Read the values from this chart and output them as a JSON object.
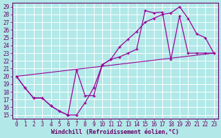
{
  "xlabel": "Windchill (Refroidissement éolien,°C)",
  "bg_color": "#b2e8e8",
  "line_color": "#990099",
  "grid_color": "#ffffff",
  "xlim": [
    -0.5,
    23.5
  ],
  "ylim": [
    14.5,
    29.5
  ],
  "xticks": [
    0,
    1,
    2,
    3,
    4,
    5,
    6,
    7,
    8,
    9,
    10,
    11,
    12,
    13,
    14,
    15,
    16,
    17,
    18,
    19,
    20,
    21,
    22,
    23
  ],
  "yticks": [
    15,
    16,
    17,
    18,
    19,
    20,
    21,
    22,
    23,
    24,
    25,
    26,
    27,
    28,
    29
  ],
  "line1_x": [
    0,
    1,
    2,
    3,
    4,
    5,
    6,
    7,
    8,
    9,
    10,
    11,
    12,
    13,
    14,
    15,
    16,
    17,
    18,
    19,
    20,
    21,
    22,
    23
  ],
  "line1_y": [
    20.0,
    18.5,
    17.2,
    17.2,
    16.2,
    15.5,
    15.0,
    15.0,
    16.6,
    18.5,
    21.5,
    22.2,
    23.8,
    24.8,
    25.8,
    27.0,
    27.5,
    28.0,
    28.2,
    29.0,
    27.5,
    25.5,
    25.0,
    23.0
  ],
  "line2_x": [
    0,
    1,
    2,
    3,
    4,
    5,
    6,
    7,
    8,
    9,
    10,
    11,
    12,
    13,
    14,
    15,
    16,
    17,
    18,
    19,
    20,
    21,
    22,
    23
  ],
  "line2_y": [
    20.0,
    18.5,
    17.2,
    17.2,
    16.2,
    15.5,
    15.0,
    20.8,
    17.5,
    17.5,
    21.5,
    22.2,
    22.5,
    23.0,
    23.5,
    28.5,
    28.2,
    28.3,
    22.2,
    27.8,
    23.0,
    23.0,
    23.0,
    23.0
  ],
  "line3_x": [
    0,
    23
  ],
  "line3_y": [
    20.0,
    23.0
  ],
  "font_color": "#660066",
  "tick_fontsize": 5.5,
  "label_fontsize": 6.0
}
